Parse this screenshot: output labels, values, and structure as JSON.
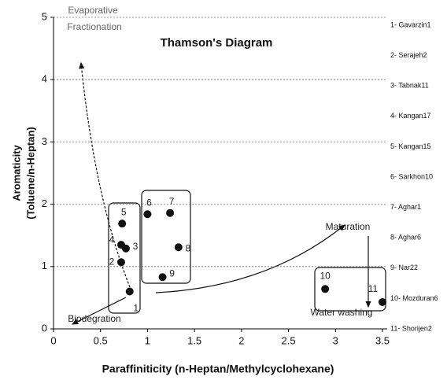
{
  "chart_data": {
    "type": "scatter",
    "title": "Thamson's Diagram",
    "x_label": "Paraffiniticity  (n-Heptan/Methylcyclohexane)",
    "y_label": [
      "Aromaticity",
      "(Toluene/n-Heptan)"
    ],
    "x": [
      0.81,
      0.72,
      0.77,
      0.72,
      0.73,
      1.0,
      1.24,
      1.33,
      1.16,
      2.89,
      3.5
    ],
    "values": [
      0.6,
      1.07,
      1.29,
      1.35,
      1.69,
      1.84,
      1.86,
      1.31,
      0.83,
      0.64,
      0.43
    ],
    "point_labels": [
      "1",
      "2",
      "3",
      "4",
      "5",
      "6",
      "7",
      "8",
      "9",
      "10",
      "11"
    ],
    "color": "#111111",
    "xlim": [
      0,
      3.5
    ],
    "xticks": [
      0,
      0.5,
      1,
      1.5,
      2,
      2.5,
      3,
      3.5
    ],
    "ylim": [
      0,
      5
    ],
    "yticks": [
      0,
      1,
      2,
      3,
      4,
      5
    ],
    "grid": true,
    "legend": [
      "1- Gavarzin1",
      "2- Serajeh2",
      "3- Tabnak11",
      "4- Kangan17",
      "5- Kangan15",
      "6- Sarkhon10",
      "7- Aghar1",
      "8- Aghar6",
      "9- Nar22",
      "10- Mozduran6",
      "11- Shorijen2"
    ],
    "annotations": {
      "evaporative": [
        "Evaporative",
        "Fractionation"
      ],
      "maturation": "Maturation",
      "biodegradation": "Biodegration",
      "water_washing": "Water washing"
    }
  }
}
